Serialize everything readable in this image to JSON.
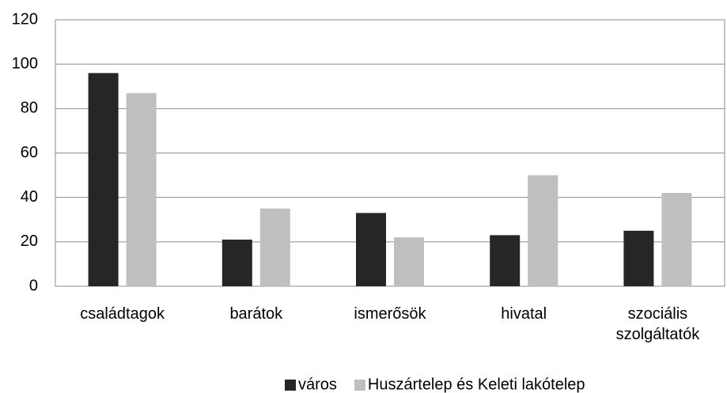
{
  "chart_data": {
    "type": "bar",
    "categories": [
      "családtagok",
      "barátok",
      "ismerősök",
      "hivatal",
      "szociális szolgáltatók"
    ],
    "series": [
      {
        "name": "város",
        "color": "#262626",
        "values": [
          96,
          21,
          33,
          23,
          25
        ]
      },
      {
        "name": "Huszártelep és Keleti lakótelep",
        "color": "#bfbfbf",
        "values": [
          87,
          35,
          22,
          50,
          42
        ]
      }
    ],
    "ylim": [
      0,
      120
    ],
    "yticks": [
      0,
      20,
      40,
      60,
      80,
      100,
      120
    ],
    "grid": true,
    "legend": "bottom"
  }
}
